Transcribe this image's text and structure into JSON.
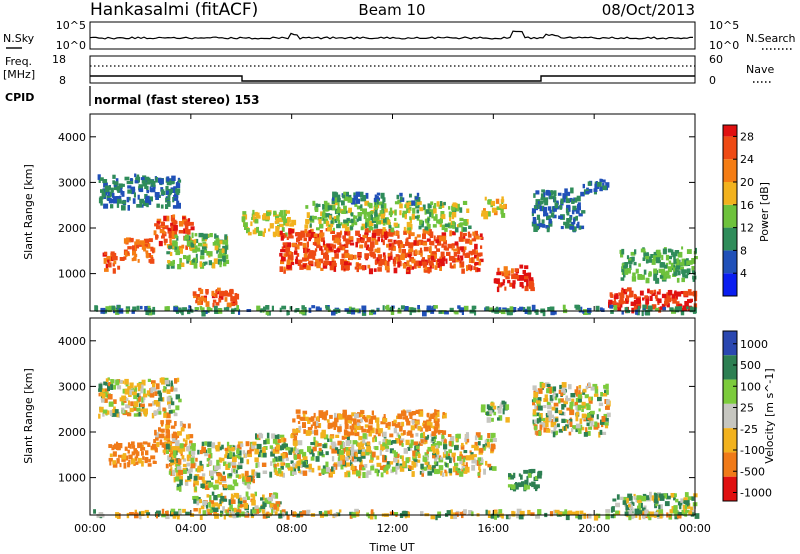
{
  "header": {
    "station": "Hankasalmi (fitACF)",
    "beam": "Beam 10",
    "date": "08/Oct/2013"
  },
  "top_panels": {
    "nsky_label": "N.Sky",
    "nsky_ticks": [
      "10^5",
      "10^0"
    ],
    "nsearch_label": "N.Search",
    "nsearch_ticks": [
      "10^5",
      "10^0"
    ],
    "freq_label": "Freq.",
    "freq_unit": "[MHz]",
    "freq_ticks": [
      "18",
      "8"
    ],
    "nave_label": "Nave",
    "nave_ticks": [
      "60",
      "0"
    ],
    "cpid_label": "CPID",
    "cpid_value": "normal (fast stereo) 153"
  },
  "chart_data": [
    {
      "type": "heatmap",
      "title": "",
      "xlabel": "Time UT",
      "ylabel": "Slant Range [km]",
      "xlim": [
        0,
        24
      ],
      "ylim": [
        180,
        4500
      ],
      "x_ticks": [
        "00:00",
        "04:00",
        "08:00",
        "12:00",
        "16:00",
        "20:00",
        "00:00"
      ],
      "y_ticks": [
        "1000",
        "2000",
        "3000",
        "4000"
      ],
      "colorbar": {
        "label": "Power [dB]",
        "ticks": [
          "4",
          "8",
          "12",
          "16",
          "20",
          "24",
          "28"
        ],
        "bins": [
          {
            "range": [
              0,
              4
            ],
            "color": "#0a1ef0"
          },
          {
            "range": [
              4,
              8
            ],
            "color": "#2050b8"
          },
          {
            "range": [
              8,
              12
            ],
            "color": "#2f8c5a"
          },
          {
            "range": [
              12,
              16
            ],
            "color": "#6ec23c"
          },
          {
            "range": [
              16,
              20
            ],
            "color": "#f2b21e"
          },
          {
            "range": [
              20,
              24
            ],
            "color": "#f57d14"
          },
          {
            "range": [
              24,
              28
            ],
            "color": "#ee4a14"
          },
          {
            "range": [
              28,
              30
            ],
            "color": "#e01010"
          }
        ]
      },
      "regions": [
        {
          "t": [
            0.3,
            3.5
          ],
          "r": [
            2500,
            3200
          ],
          "value": 8
        },
        {
          "t": [
            0.5,
            1.2
          ],
          "r": [
            1100,
            1500
          ],
          "value": 26
        },
        {
          "t": [
            1.2,
            2.5
          ],
          "r": [
            1300,
            1800
          ],
          "value": 24
        },
        {
          "t": [
            2.5,
            4.0
          ],
          "r": [
            1600,
            2300
          ],
          "value": 25
        },
        {
          "t": [
            3.0,
            5.5
          ],
          "r": [
            1200,
            1900
          ],
          "value": 14
        },
        {
          "t": [
            4.0,
            5.8
          ],
          "r": [
            350,
            700
          ],
          "value": 26
        },
        {
          "t": [
            6.0,
            8.0
          ],
          "r": [
            1900,
            2400
          ],
          "value": 16
        },
        {
          "t": [
            7.5,
            15.5
          ],
          "r": [
            1100,
            2000
          ],
          "value": 26
        },
        {
          "t": [
            8.5,
            15.0
          ],
          "r": [
            2000,
            2600
          ],
          "value": 14
        },
        {
          "t": [
            9.5,
            13.0
          ],
          "r": [
            2600,
            2800
          ],
          "value": 9
        },
        {
          "t": [
            15.5,
            16.5
          ],
          "r": [
            2300,
            2700
          ],
          "value": 18
        },
        {
          "t": [
            16.0,
            17.5
          ],
          "r": [
            700,
            1200
          ],
          "value": 27
        },
        {
          "t": [
            17.5,
            19.5
          ],
          "r": [
            2000,
            2900
          ],
          "value": 8
        },
        {
          "t": [
            19.5,
            20.5
          ],
          "r": [
            2800,
            3100
          ],
          "value": 7
        },
        {
          "t": [
            20.5,
            24.0
          ],
          "r": [
            250,
            700
          ],
          "value": 28
        },
        {
          "t": [
            21.0,
            24.0
          ],
          "r": [
            900,
            1600
          ],
          "value": 12
        },
        {
          "t": [
            0.0,
            24.0
          ],
          "r": [
            180,
            320
          ],
          "value": 10
        }
      ]
    },
    {
      "type": "heatmap",
      "title": "",
      "xlabel": "Time UT",
      "ylabel": "Slant Range [km]",
      "xlim": [
        0,
        24
      ],
      "ylim": [
        180,
        4500
      ],
      "x_ticks": [
        "00:00",
        "04:00",
        "08:00",
        "12:00",
        "16:00",
        "20:00",
        "00:00"
      ],
      "y_ticks": [
        "1000",
        "2000",
        "3000",
        "4000"
      ],
      "colorbar": {
        "label": "Velocity [m s^-1]",
        "ticks": [
          "1000",
          "500",
          "100",
          "25",
          "-25",
          "-100",
          "-500",
          "-1000"
        ],
        "bins": [
          {
            "range": [
              500,
              1000
            ],
            "color": "#2a47b0"
          },
          {
            "range": [
              100,
              500
            ],
            "color": "#2d7f52"
          },
          {
            "range": [
              25,
              100
            ],
            "color": "#7ccb3c"
          },
          {
            "range": [
              -25,
              25
            ],
            "color": "#c6c6c0"
          },
          {
            "range": [
              -100,
              -25
            ],
            "color": "#f2b21e"
          },
          {
            "range": [
              -500,
              -100
            ],
            "color": "#f07a18"
          },
          {
            "range": [
              -1000,
              -500
            ],
            "color": "#e01010"
          }
        ]
      },
      "regions": [
        {
          "t": [
            0.3,
            3.5
          ],
          "r": [
            2400,
            3200
          ],
          "value": 0
        },
        {
          "t": [
            0.7,
            2.5
          ],
          "r": [
            1300,
            1800
          ],
          "value": -200
        },
        {
          "t": [
            2.5,
            4.0
          ],
          "r": [
            1600,
            2300
          ],
          "value": -150
        },
        {
          "t": [
            3.0,
            6.5
          ],
          "r": [
            800,
            1800
          ],
          "value": 0
        },
        {
          "t": [
            4.0,
            7.5
          ],
          "r": [
            200,
            700
          ],
          "value": 0
        },
        {
          "t": [
            6.5,
            16.0
          ],
          "r": [
            1100,
            2000
          ],
          "value": 0
        },
        {
          "t": [
            8.0,
            14.0
          ],
          "r": [
            2000,
            2500
          ],
          "value": -150
        },
        {
          "t": [
            15.5,
            16.5
          ],
          "r": [
            2300,
            2700
          ],
          "value": 80
        },
        {
          "t": [
            16.5,
            17.8
          ],
          "r": [
            800,
            1200
          ],
          "value": 200
        },
        {
          "t": [
            17.5,
            20.5
          ],
          "r": [
            2000,
            3100
          ],
          "value": 0
        },
        {
          "t": [
            20.5,
            24.0
          ],
          "r": [
            200,
            700
          ],
          "value": 60
        },
        {
          "t": [
            0.0,
            24.0
          ],
          "r": [
            180,
            320
          ],
          "value": 0
        }
      ]
    }
  ]
}
